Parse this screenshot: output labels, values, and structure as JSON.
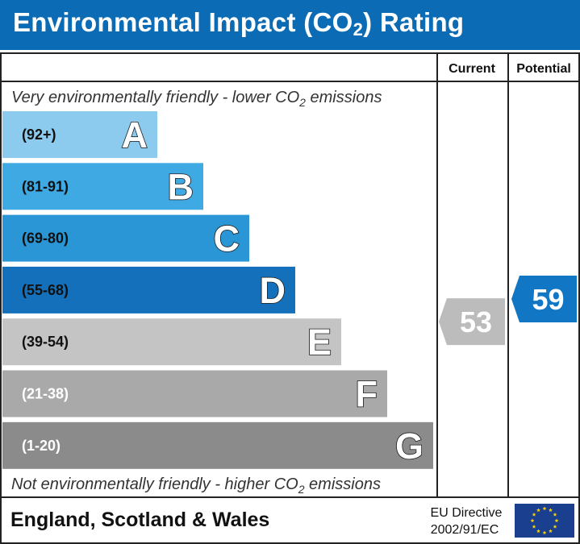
{
  "header": {
    "title_pre": "Environmental Impact (CO",
    "title_sub": "2",
    "title_post": ") Rating"
  },
  "columns": {
    "current": "Current",
    "potential": "Potential"
  },
  "captions": {
    "top_pre": "Very environmentally friendly - lower CO",
    "top_sub": "2",
    "top_post": " emissions",
    "bottom_pre": "Not environmentally friendly - higher CO",
    "bottom_sub": "2",
    "bottom_post": " emissions"
  },
  "footer": {
    "region": "England, Scotland & Wales",
    "directive_line1": "EU Directive",
    "directive_line2": "2002/91/EC",
    "flag_icon": "eu-flag-icon"
  },
  "colors": {
    "title_bar": "#0b6cb5",
    "current_arrow": "#bcbcbc",
    "potential_arrow": "#1177c4"
  },
  "chart_data": {
    "type": "bar",
    "categories": [
      "A",
      "B",
      "C",
      "D",
      "E",
      "F",
      "G"
    ],
    "bands": [
      {
        "letter": "A",
        "range": "(92+)",
        "min": 92,
        "max": 100,
        "color": "#8ccbee",
        "text_color": "#111111"
      },
      {
        "letter": "B",
        "range": "(81-91)",
        "min": 81,
        "max": 91,
        "color": "#3fa9e3",
        "text_color": "#111111"
      },
      {
        "letter": "C",
        "range": "(69-80)",
        "min": 69,
        "max": 80,
        "color": "#2a96d6",
        "text_color": "#111111"
      },
      {
        "letter": "D",
        "range": "(55-68)",
        "min": 55,
        "max": 68,
        "color": "#1570bb",
        "text_color": "#111111"
      },
      {
        "letter": "E",
        "range": "(39-54)",
        "min": 39,
        "max": 54,
        "color": "#c4c4c4",
        "text_color": "#111111"
      },
      {
        "letter": "F",
        "range": "(21-38)",
        "min": 21,
        "max": 38,
        "color": "#a9a9a9",
        "text_color": "#ffffff"
      },
      {
        "letter": "G",
        "range": "(1-20)",
        "min": 1,
        "max": 20,
        "color": "#8b8b8b",
        "text_color": "#ffffff"
      }
    ],
    "current": {
      "value": 53,
      "band": "E"
    },
    "potential": {
      "value": 59,
      "band": "D"
    }
  }
}
